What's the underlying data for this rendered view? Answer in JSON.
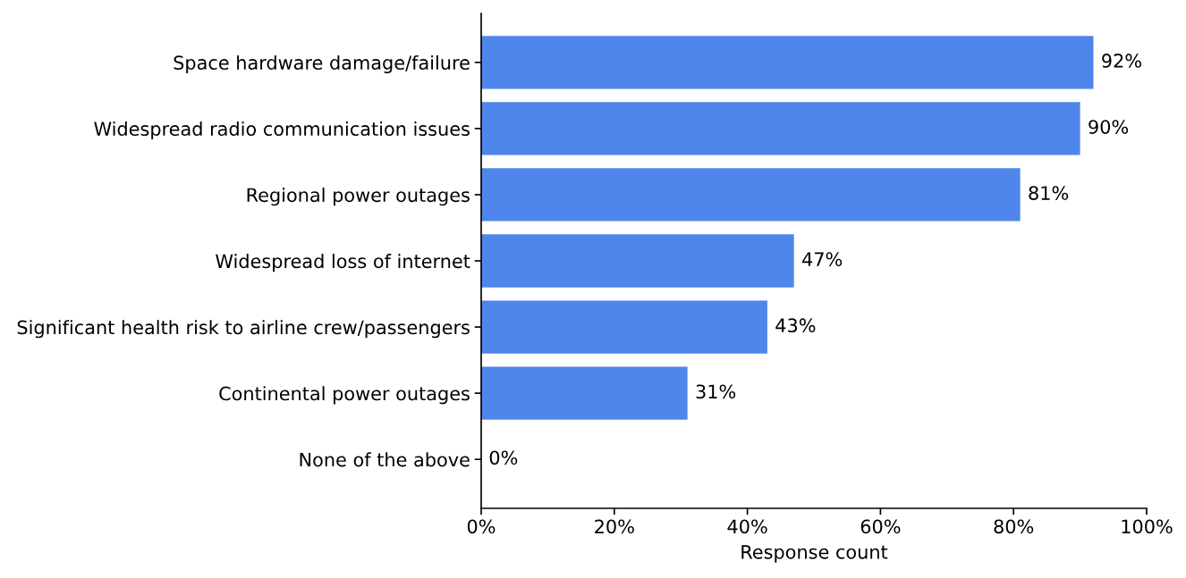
{
  "chart_data": {
    "type": "bar",
    "orientation": "horizontal",
    "xlabel": "Response count",
    "categories": [
      "Space hardware damage/failure",
      "Widespread radio communication issues",
      "Regional power outages",
      "Widespread loss of internet",
      "Significant health risk to airline crew/passengers",
      "Continental power outages",
      "None of the above"
    ],
    "values": [
      92,
      90,
      81,
      47,
      43,
      31,
      0
    ],
    "value_labels": [
      "92%",
      "90%",
      "81%",
      "47%",
      "43%",
      "31%",
      "0%"
    ],
    "color": "#4f86ec",
    "xlim": [
      0,
      100
    ],
    "xticks": [
      {
        "value": 0,
        "label": "0%"
      },
      {
        "value": 20,
        "label": "20%"
      },
      {
        "value": 40,
        "label": "40%"
      },
      {
        "value": 60,
        "label": "60%"
      },
      {
        "value": 80,
        "label": "80%"
      },
      {
        "value": 100,
        "label": "100%"
      }
    ]
  }
}
